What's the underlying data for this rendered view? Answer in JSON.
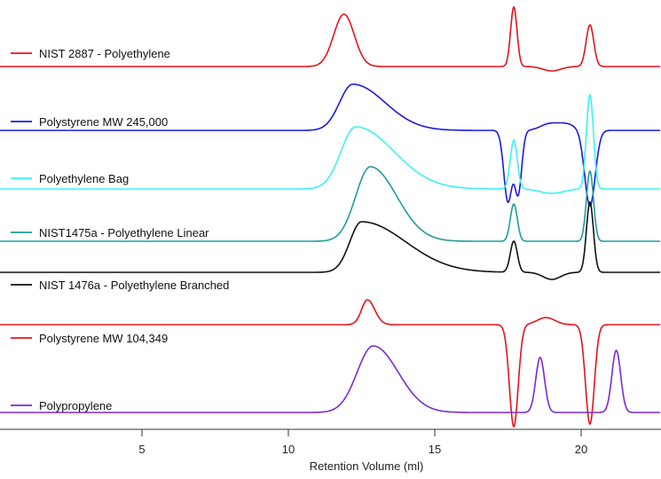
{
  "chart_data": {
    "type": "line",
    "title": "",
    "xlabel": "Retention Volume (ml)",
    "ylabel": "",
    "xlim": [
      0,
      22.7
    ],
    "ylim": [
      0,
      480
    ],
    "grid": false,
    "xticks": [
      5,
      10,
      15,
      20
    ],
    "legend_placement": "inline-left",
    "note": "Stacked offset chromatograms; peaks given as [center ml, amplitude, sigma-left, sigma-right] in arbitrary signal units",
    "series": [
      {
        "name": "NIST 2887 - Polyethylene",
        "color": "#e3141c",
        "baseline": 409,
        "peaks": [
          [
            11.9,
            59,
            0.35,
            0.35
          ],
          [
            17.7,
            67,
            0.11,
            0.11
          ],
          [
            20.3,
            47,
            0.13,
            0.13
          ],
          [
            19.0,
            -5,
            0.3,
            0.3
          ]
        ]
      },
      {
        "name": "Polystyrene MW 245,000",
        "color": "#1a1adf",
        "baseline": 337,
        "peaks": [
          [
            12.2,
            52,
            0.45,
            1.1
          ],
          [
            17.5,
            -80,
            0.14,
            0.14
          ],
          [
            17.85,
            -70,
            0.12,
            0.12
          ],
          [
            18.9,
            7,
            0.3,
            0.3
          ],
          [
            19.5,
            7,
            0.3,
            0.3
          ],
          [
            20.3,
            -85,
            0.18,
            0.18
          ]
        ]
      },
      {
        "name": "Polyethylene Bag",
        "color": "#3df2f2",
        "baseline": 271,
        "peaks": [
          [
            12.3,
            70,
            0.5,
            1.3
          ],
          [
            17.7,
            55,
            0.12,
            0.12
          ],
          [
            19.0,
            -5,
            0.4,
            0.4
          ],
          [
            20.3,
            106,
            0.12,
            0.12
          ]
        ]
      },
      {
        "name": "NIST1475a - Polyethylene Linear",
        "color": "#1f9c9c",
        "baseline": 212,
        "peaks": [
          [
            12.8,
            84,
            0.5,
            0.9
          ],
          [
            17.7,
            42,
            0.12,
            0.12
          ],
          [
            20.3,
            79,
            0.12,
            0.12
          ]
        ]
      },
      {
        "name": "NIST 1476a - Polyethylene Branched",
        "color": "#111111",
        "baseline": 177,
        "peaks": [
          [
            12.5,
            57,
            0.4,
            1.5
          ],
          [
            17.7,
            35,
            0.12,
            0.12
          ],
          [
            19.0,
            -8,
            0.3,
            0.3
          ],
          [
            20.3,
            79,
            0.12,
            0.12
          ]
        ]
      },
      {
        "name": "Polystyrene MW 104,349",
        "color": "#e3141c",
        "baseline": 118,
        "peaks": [
          [
            12.7,
            28,
            0.2,
            0.25
          ],
          [
            17.7,
            -115,
            0.15,
            0.15
          ],
          [
            18.8,
            8,
            0.3,
            0.3
          ],
          [
            20.3,
            -112,
            0.15,
            0.15
          ]
        ]
      },
      {
        "name": "Polypropylene",
        "color": "#7a2ad6",
        "baseline": 19,
        "peaks": [
          [
            12.9,
            75,
            0.55,
            0.85
          ],
          [
            18.6,
            62,
            0.15,
            0.15
          ],
          [
            21.2,
            70,
            0.15,
            0.15
          ]
        ]
      }
    ]
  }
}
